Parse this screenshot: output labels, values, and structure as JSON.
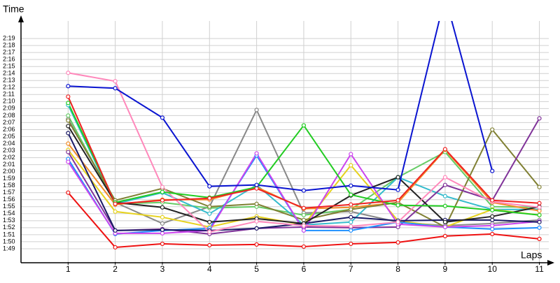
{
  "chart_data": {
    "type": "line",
    "y_label": "Time",
    "x_label": "Laps",
    "x": [
      1,
      2,
      3,
      4,
      5,
      6,
      7,
      8,
      9,
      10,
      11
    ],
    "xlim": [
      0,
      11.2
    ],
    "xticks": [
      1,
      2,
      3,
      4,
      5,
      6,
      7,
      8,
      9,
      10,
      11
    ],
    "ylim": [
      107.1,
      141.5
    ],
    "yticks": [
      {
        "value": 109,
        "label": "1:49"
      },
      {
        "value": 110,
        "label": "1:50"
      },
      {
        "value": 111,
        "label": "1:51"
      },
      {
        "value": 112,
        "label": "1:52"
      },
      {
        "value": 113,
        "label": "1:53"
      },
      {
        "value": 114,
        "label": "1:54"
      },
      {
        "value": 115,
        "label": "1:55"
      },
      {
        "value": 116,
        "label": "1:56"
      },
      {
        "value": 117,
        "label": "1:57"
      },
      {
        "value": 118,
        "label": "1:58"
      },
      {
        "value": 119,
        "label": "1:59"
      },
      {
        "value": 120,
        "label": "2:00"
      },
      {
        "value": 121,
        "label": "2:01"
      },
      {
        "value": 122,
        "label": "2:02"
      },
      {
        "value": 123,
        "label": "2:03"
      },
      {
        "value": 124,
        "label": "2:04"
      },
      {
        "value": 125,
        "label": "2:05"
      },
      {
        "value": 126,
        "label": "2:06"
      },
      {
        "value": 127,
        "label": "2:07"
      },
      {
        "value": 128,
        "label": "2:08"
      },
      {
        "value": 129,
        "label": "2:09"
      },
      {
        "value": 130,
        "label": "2:10"
      },
      {
        "value": 131,
        "label": "2:11"
      },
      {
        "value": 132,
        "label": "2:12"
      },
      {
        "value": 133,
        "label": "2:13"
      },
      {
        "value": 134,
        "label": "2:14"
      },
      {
        "value": 135,
        "label": "2:15"
      },
      {
        "value": 136,
        "label": "2:16"
      },
      {
        "value": 137,
        "label": "2:17"
      },
      {
        "value": 138,
        "label": "2:18"
      },
      {
        "value": 139,
        "label": "2:19"
      }
    ],
    "grid": true,
    "series": [
      {
        "color": "#888888",
        "values": [
          127.5,
          115.6,
          112.6,
          115,
          128.8,
          114.1,
          114.3,
          112.8,
          112.3,
          112.6,
          113.1
        ]
      },
      {
        "color": "#66cc66",
        "values": [
          128,
          115.4,
          115.6,
          114.8,
          115,
          113.8,
          114.6,
          119.2,
          122.8,
          115,
          114.9
        ]
      },
      {
        "color": "#33bbcc",
        "values": [
          129.5,
          115.4,
          117,
          114,
          118.1,
          112.4,
          112.8,
          119.2,
          116.5,
          114.6,
          114.6
        ]
      },
      {
        "color": "#e6d21e",
        "values": [
          123.1,
          114.3,
          113.5,
          112.1,
          113.6,
          112.4,
          120.9,
          113,
          112.1,
          114.6,
          113.8
        ]
      },
      {
        "color": "#f28c28",
        "values": [
          124,
          115.3,
          116,
          116,
          117.8,
          114.7,
          114.9,
          115.6,
          123.1,
          115.6,
          114.4
        ]
      },
      {
        "color": "#808033",
        "values": [
          127.3,
          115.9,
          117.6,
          115,
          115.4,
          113.1,
          114.6,
          115.6,
          112.1,
          126,
          117.8
        ]
      },
      {
        "color": "#803399",
        "values": [
          122.8,
          111.6,
          111.8,
          111.1,
          111.9,
          112.1,
          112,
          112.1,
          118.1,
          115.9,
          127.6
        ]
      },
      {
        "color": "#1e90ff",
        "values": [
          121.8,
          111.1,
          111.6,
          111.9,
          122.3,
          111.6,
          111.6,
          112.8,
          112.1,
          111.8,
          112
        ]
      },
      {
        "color": "#cc44ee",
        "values": [
          121.4,
          111.2,
          111.2,
          111.6,
          122.6,
          111.6,
          122.5,
          112.5,
          112.1,
          112.3,
          112.9
        ]
      },
      {
        "color": "#1a1a66",
        "values": [
          125.5,
          111.6,
          111.7,
          111.6,
          111.9,
          112.6,
          113.5,
          113,
          113.1,
          113.1,
          112.8
        ]
      },
      {
        "color": "#222222",
        "values": [
          126.5,
          115.6,
          114.9,
          112.8,
          113.3,
          112.6,
          116.6,
          119.2,
          112.8,
          113.6,
          115
        ]
      },
      {
        "color": "#ff88bb",
        "values": [
          134.1,
          132.9,
          117.8,
          111.4,
          112.9,
          112.3,
          112.2,
          112.8,
          119.2,
          115.7,
          114.9
        ]
      },
      {
        "color": "#22cc22",
        "values": [
          129.8,
          115.6,
          117.1,
          116.3,
          117.8,
          126.6,
          116.7,
          115.2,
          115.1,
          114.5,
          113.8
        ]
      },
      {
        "color": "#ee2222",
        "values": [
          130.7,
          115.4,
          115.9,
          116.2,
          117.6,
          114.8,
          115.3,
          115.9,
          123.2,
          115.9,
          115.5
        ]
      },
      {
        "color": "#0a14d0",
        "values": [
          132.2,
          131.9,
          127.7,
          117.9,
          118.1,
          117.3,
          118,
          117.4,
          145,
          120.1,
          null
        ]
      },
      {
        "color": "#ee1111",
        "values": [
          117,
          109.2,
          109.7,
          109.5,
          109.6,
          109.3,
          109.7,
          109.9,
          110.8,
          111.1,
          110.4
        ]
      }
    ]
  }
}
